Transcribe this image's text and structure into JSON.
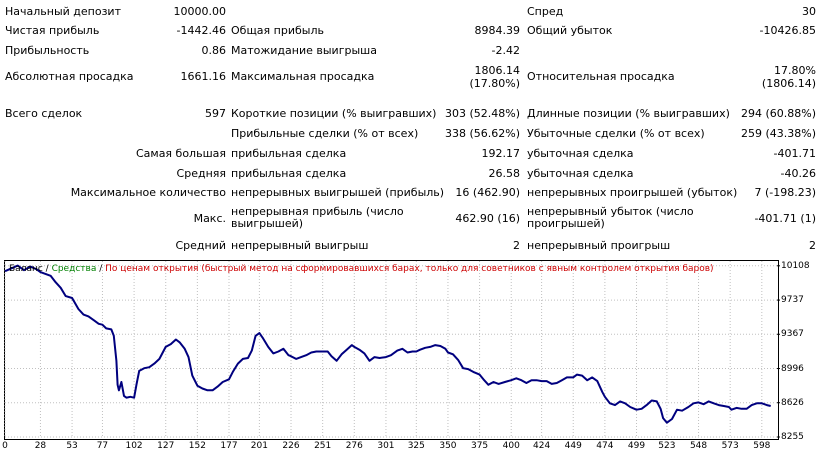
{
  "stats": {
    "initial_deposit_label": "Начальный депозит",
    "initial_deposit_value": "10000.00",
    "spread_label": "Спред",
    "spread_value": "30",
    "net_profit_label": "Чистая прибыль",
    "net_profit_value": "-1442.46",
    "gross_profit_label": "Общая прибыль",
    "gross_profit_value": "8984.39",
    "gross_loss_label": "Общий убыток",
    "gross_loss_value": "-10426.85",
    "profit_factor_label": "Прибыльность",
    "profit_factor_value": "0.86",
    "expected_payoff_label": "Матожидание выигрыша",
    "expected_payoff_value": "-2.42",
    "abs_drawdown_label": "Абсолютная просадка",
    "abs_drawdown_value": "1661.16",
    "max_drawdown_label": "Максимальная просадка",
    "max_drawdown_value_1": "1806.14",
    "max_drawdown_value_2": "(17.80%)",
    "rel_drawdown_label": "Относительная просадка",
    "rel_drawdown_value_1": "17.80%",
    "rel_drawdown_value_2": "(1806.14)",
    "total_trades_label": "Всего сделок",
    "total_trades_value": "597",
    "short_pos_label": "Короткие позиции (% выигравших)",
    "short_pos_value": "303 (52.48%)",
    "long_pos_label": "Длинные позиции (% выигравших)",
    "long_pos_value": "294 (60.88%)",
    "profit_trades_label": "Прибыльные сделки (% от всех)",
    "profit_trades_value": "338 (56.62%)",
    "loss_trades_label": "Убыточные сделки (% от всех)",
    "loss_trades_value": "259 (43.38%)",
    "largest_label": "Самая большая",
    "largest_profit_label": "прибыльная сделка",
    "largest_profit_value": "192.17",
    "largest_loss_label": "убыточная сделка",
    "largest_loss_value": "-401.71",
    "average_label": "Средняя",
    "average_profit_label": "прибыльная сделка",
    "average_profit_value": "26.58",
    "average_loss_label": "убыточная сделка",
    "average_loss_value": "-40.26",
    "max_count_label": "Максимальное количество",
    "max_cons_wins_label": "непрерывных выигрышей (прибыль)",
    "max_cons_wins_value": "16 (462.90)",
    "max_cons_losses_label": "непрерывных проигрышей (убыток)",
    "max_cons_losses_value": "7 (-198.23)",
    "max_label": "Макс.",
    "max_cons_profit_label": "непрерывная прибыль (число выигрышей)",
    "max_cons_profit_value": "462.90 (16)",
    "max_cons_loss_label": "непрерывный убыток (число проигрышей)",
    "max_cons_loss_value": "-401.71 (1)",
    "avg_label": "Средний",
    "avg_cons_wins_label": "непрерывный выигрыш",
    "avg_cons_wins_value": "2",
    "avg_cons_losses_label": "непрерывный проигрыш",
    "avg_cons_losses_value": "2"
  },
  "legend": {
    "balance": "Баланс",
    "separator1": " / ",
    "equity": "Средства",
    "separator2": " / ",
    "method": "По ценам открытия (быстрый метод на сформировавшихся барах, только для советников с явным контролем открытия баров)"
  },
  "colors": {
    "balance": "#00007f",
    "equity": "#008000",
    "method": "#cc0000",
    "grid": "#c0c0c0"
  },
  "chart_data": {
    "type": "line",
    "title": "",
    "xlabel": "",
    "ylabel": "",
    "x_ticks": [
      "0",
      "28",
      "53",
      "77",
      "102",
      "127",
      "152",
      "177",
      "201",
      "226",
      "251",
      "276",
      "301",
      "325",
      "350",
      "375",
      "400",
      "424",
      "449",
      "474",
      "499",
      "523",
      "548",
      "573",
      "598"
    ],
    "y_ticks": [
      "10108",
      "9737",
      "9367",
      "8996",
      "8626",
      "8255"
    ],
    "xlim": [
      0,
      610
    ],
    "ylim": [
      8255,
      10160
    ],
    "grid": true,
    "series": [
      {
        "name": "Баланс",
        "points": [
          [
            0,
            10050
          ],
          [
            5,
            10080
          ],
          [
            10,
            10110
          ],
          [
            15,
            10060
          ],
          [
            20,
            10100
          ],
          [
            25,
            10070
          ],
          [
            28,
            10040
          ],
          [
            32,
            10020
          ],
          [
            36,
            10000
          ],
          [
            40,
            9930
          ],
          [
            44,
            9870
          ],
          [
            48,
            9780
          ],
          [
            53,
            9760
          ],
          [
            58,
            9640
          ],
          [
            62,
            9580
          ],
          [
            66,
            9560
          ],
          [
            70,
            9520
          ],
          [
            74,
            9480
          ],
          [
            77,
            9470
          ],
          [
            80,
            9430
          ],
          [
            84,
            9420
          ],
          [
            86,
            9350
          ],
          [
            88,
            9080
          ],
          [
            89,
            8820
          ],
          [
            90,
            8760
          ],
          [
            92,
            8850
          ],
          [
            94,
            8700
          ],
          [
            96,
            8680
          ],
          [
            99,
            8690
          ],
          [
            102,
            8680
          ],
          [
            104,
            8830
          ],
          [
            106,
            8970
          ],
          [
            110,
            9000
          ],
          [
            114,
            9010
          ],
          [
            118,
            9050
          ],
          [
            122,
            9100
          ],
          [
            127,
            9230
          ],
          [
            131,
            9260
          ],
          [
            135,
            9310
          ],
          [
            138,
            9280
          ],
          [
            142,
            9210
          ],
          [
            145,
            9120
          ],
          [
            148,
            8920
          ],
          [
            152,
            8810
          ],
          [
            156,
            8780
          ],
          [
            160,
            8760
          ],
          [
            164,
            8760
          ],
          [
            168,
            8800
          ],
          [
            172,
            8850
          ],
          [
            177,
            8880
          ],
          [
            180,
            8960
          ],
          [
            184,
            9050
          ],
          [
            188,
            9100
          ],
          [
            192,
            9110
          ],
          [
            195,
            9190
          ],
          [
            198,
            9350
          ],
          [
            201,
            9380
          ],
          [
            204,
            9320
          ],
          [
            208,
            9230
          ],
          [
            212,
            9160
          ],
          [
            216,
            9180
          ],
          [
            220,
            9210
          ],
          [
            224,
            9140
          ],
          [
            226,
            9130
          ],
          [
            230,
            9100
          ],
          [
            234,
            9120
          ],
          [
            238,
            9140
          ],
          [
            242,
            9170
          ],
          [
            246,
            9180
          ],
          [
            251,
            9180
          ],
          [
            255,
            9180
          ],
          [
            258,
            9130
          ],
          [
            262,
            9080
          ],
          [
            266,
            9150
          ],
          [
            270,
            9200
          ],
          [
            274,
            9250
          ],
          [
            276,
            9230
          ],
          [
            280,
            9200
          ],
          [
            284,
            9160
          ],
          [
            288,
            9080
          ],
          [
            292,
            9120
          ],
          [
            296,
            9110
          ],
          [
            301,
            9120
          ],
          [
            305,
            9140
          ],
          [
            310,
            9190
          ],
          [
            314,
            9210
          ],
          [
            318,
            9170
          ],
          [
            322,
            9180
          ],
          [
            325,
            9180
          ],
          [
            328,
            9200
          ],
          [
            332,
            9220
          ],
          [
            336,
            9230
          ],
          [
            340,
            9250
          ],
          [
            344,
            9240
          ],
          [
            348,
            9210
          ],
          [
            350,
            9170
          ],
          [
            354,
            9150
          ],
          [
            358,
            9090
          ],
          [
            362,
            9000
          ],
          [
            366,
            8990
          ],
          [
            370,
            8960
          ],
          [
            375,
            8930
          ],
          [
            378,
            8880
          ],
          [
            382,
            8820
          ],
          [
            386,
            8850
          ],
          [
            390,
            8830
          ],
          [
            395,
            8850
          ],
          [
            400,
            8870
          ],
          [
            404,
            8890
          ],
          [
            408,
            8870
          ],
          [
            412,
            8840
          ],
          [
            416,
            8870
          ],
          [
            420,
            8870
          ],
          [
            424,
            8860
          ],
          [
            428,
            8860
          ],
          [
            432,
            8830
          ],
          [
            436,
            8840
          ],
          [
            440,
            8870
          ],
          [
            444,
            8900
          ],
          [
            449,
            8900
          ],
          [
            452,
            8930
          ],
          [
            456,
            8920
          ],
          [
            460,
            8870
          ],
          [
            464,
            8900
          ],
          [
            468,
            8860
          ],
          [
            472,
            8740
          ],
          [
            474,
            8690
          ],
          [
            478,
            8620
          ],
          [
            482,
            8600
          ],
          [
            486,
            8640
          ],
          [
            490,
            8620
          ],
          [
            494,
            8580
          ],
          [
            499,
            8550
          ],
          [
            503,
            8560
          ],
          [
            507,
            8600
          ],
          [
            511,
            8650
          ],
          [
            515,
            8640
          ],
          [
            518,
            8560
          ],
          [
            520,
            8460
          ],
          [
            523,
            8410
          ],
          [
            527,
            8450
          ],
          [
            531,
            8550
          ],
          [
            535,
            8540
          ],
          [
            540,
            8580
          ],
          [
            544,
            8620
          ],
          [
            548,
            8630
          ],
          [
            552,
            8610
          ],
          [
            556,
            8640
          ],
          [
            560,
            8620
          ],
          [
            564,
            8600
          ],
          [
            568,
            8590
          ],
          [
            572,
            8580
          ],
          [
            574,
            8550
          ],
          [
            578,
            8570
          ],
          [
            582,
            8560
          ],
          [
            586,
            8560
          ],
          [
            590,
            8600
          ],
          [
            594,
            8620
          ],
          [
            598,
            8620
          ],
          [
            602,
            8600
          ],
          [
            605,
            8590
          ]
        ]
      }
    ]
  }
}
